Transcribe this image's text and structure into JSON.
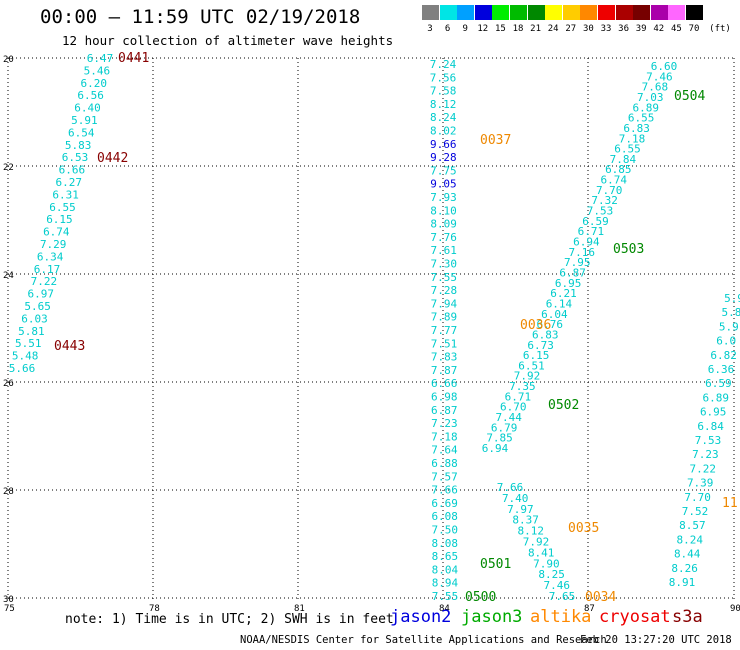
{
  "header": {
    "title": "00:00 – 11:59 UTC 02/19/2018",
    "subtitle": "12 hour collection of altimeter wave heights"
  },
  "scale": {
    "unit": "(ft)",
    "bins": [
      {
        "label": "3",
        "color": "#808080"
      },
      {
        "label": "6",
        "color": "#00e5e5"
      },
      {
        "label": "9",
        "color": "#00a0ff"
      },
      {
        "label": "12",
        "color": "#0000dd"
      },
      {
        "label": "15",
        "color": "#00ee00"
      },
      {
        "label": "18",
        "color": "#00bb00"
      },
      {
        "label": "21",
        "color": "#008800"
      },
      {
        "label": "24",
        "color": "#ffff00"
      },
      {
        "label": "27",
        "color": "#ffcc00"
      },
      {
        "label": "30",
        "color": "#ff8800"
      },
      {
        "label": "33",
        "color": "#ee0000"
      },
      {
        "label": "36",
        "color": "#aa0000"
      },
      {
        "label": "39",
        "color": "#770000"
      },
      {
        "label": "42",
        "color": "#aa00aa"
      },
      {
        "label": "45",
        "color": "#ff66ff"
      },
      {
        "label": "70",
        "color": "#000000"
      }
    ]
  },
  "axes": {
    "lon_labels": [
      "75",
      "78",
      "81",
      "84",
      "87",
      "90"
    ],
    "lat_labels": [
      "20",
      "22",
      "24",
      "26",
      "28",
      "30"
    ]
  },
  "tracks": [
    {
      "color": "#00cccc",
      "values": [
        "6.47",
        "5.46",
        "6.20",
        "6.56",
        "6.40",
        "5.91",
        "6.54",
        "5.83",
        "6.53",
        "6.66",
        "6.27",
        "6.31",
        "6.55",
        "6.15",
        "6.74",
        "7.29",
        "6.34",
        "6.17",
        "7.22",
        "6.97",
        "5.65",
        "6.03",
        "5.81",
        "5.51",
        "5.48",
        "5.66"
      ]
    },
    {
      "color": "#00cccc",
      "values": [
        "7.24",
        "7.56",
        "7.58",
        "8.12",
        "8.24",
        "8.02",
        "9.66",
        "9.28",
        "7.75",
        "9.05",
        "7.93",
        "8.10",
        "8.09",
        "7.76",
        "7.61",
        "7.30",
        "7.55",
        "7.28",
        "7.94",
        "7.89",
        "7.77",
        "7.51",
        "7.83",
        "7.87",
        "6.66",
        "6.98",
        "6.87",
        "7.23",
        "7.18",
        "7.64",
        "6.88",
        "7.57",
        "7.66",
        "6.69",
        "6.08",
        "7.50",
        "8.08",
        "8.65",
        "8.04",
        "8.94",
        "7.55"
      ]
    },
    {
      "color": "#00cccc",
      "values": [
        "6.60",
        "7.46",
        "7.68",
        "7.03",
        "6.89",
        "6.55",
        "6.83",
        "7.18",
        "6.55",
        "7.84",
        "6.85",
        "6.74",
        "7.70",
        "7.32",
        "7.53",
        "6.59",
        "6.71",
        "6.94",
        "7.16",
        "7.95",
        "6.87",
        "6.95",
        "6.21",
        "6.14",
        "6.04",
        "6.76",
        "6.83",
        "6.73",
        "6.15",
        "6.51",
        "7.92",
        "7.35",
        "6.71",
        "6.70",
        "7.44",
        "6.79",
        "7.85",
        "6.94"
      ]
    },
    {
      "color": "#00cccc",
      "values": [
        "7.66",
        "7.40",
        "7.97",
        "8.37",
        "8.12",
        "7.92",
        "8.41",
        "7.90",
        "8.25",
        "7.46",
        "7.65"
      ]
    },
    {
      "color": "#00cccc",
      "values": [
        "5.9",
        "5.8",
        "5.9",
        "6.0",
        "6.82",
        "6.36",
        "6.59",
        "6.89",
        "6.95",
        "6.84",
        "7.53",
        "7.23",
        "7.22",
        "7.39",
        "7.70",
        "7.52",
        "8.57",
        "8.24",
        "8.44",
        "8.26",
        "8.91"
      ]
    }
  ],
  "passes": [
    {
      "id": "0441",
      "color": "#880000"
    },
    {
      "id": "0442",
      "color": "#880000"
    },
    {
      "id": "0443",
      "color": "#880000"
    },
    {
      "id": "0037",
      "color": "#ee8800"
    },
    {
      "id": "0036",
      "color": "#ee8800"
    },
    {
      "id": "0035",
      "color": "#ee8800"
    },
    {
      "id": "0034",
      "color": "#ee8800"
    },
    {
      "id": "11",
      "color": "#ee8800"
    },
    {
      "id": "0504",
      "color": "#008800"
    },
    {
      "id": "0503",
      "color": "#008800"
    },
    {
      "id": "0502",
      "color": "#008800"
    },
    {
      "id": "0501",
      "color": "#008800"
    },
    {
      "id": "0500",
      "color": "#008800"
    }
  ],
  "footer": {
    "note": "note: 1) Time is in UTC; 2) SWH is in feet",
    "satellites": [
      {
        "name": "jason2",
        "color": "#0000dd"
      },
      {
        "name": "jason3",
        "color": "#00aa00"
      },
      {
        "name": "altika",
        "color": "#ff8800"
      },
      {
        "name": "cryosat",
        "color": "#ee0000"
      },
      {
        "name": "s3a",
        "color": "#880000"
      }
    ],
    "credit": "NOAA/NESDIS Center for Satellite Applications and Research",
    "timestamp": "Feb 20 13:27:20 UTC 2018"
  }
}
